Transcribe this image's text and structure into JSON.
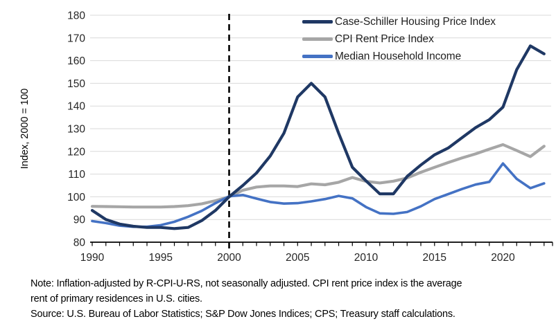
{
  "colors": {
    "gridline": "#d9d9d9",
    "axis": "#000000",
    "reference_line": "#000000",
    "navy": "#1f3864",
    "gray": "#a6a6a6",
    "blue": "#4472c4"
  },
  "chart_data": {
    "type": "line",
    "title": "",
    "ylabel": "Index, 2000 = 100",
    "xlabel": "",
    "ylim": [
      80,
      180
    ],
    "xlim": [
      1990,
      2023
    ],
    "grid": true,
    "legend_position": "top-right",
    "reference_line_x": 2000,
    "y_ticks": [
      80,
      90,
      100,
      110,
      120,
      130,
      140,
      150,
      160,
      170,
      180
    ],
    "x_ticks": [
      1990,
      1995,
      2000,
      2005,
      2010,
      2015,
      2020
    ],
    "x": [
      1990,
      1991,
      1992,
      1993,
      1994,
      1995,
      1996,
      1997,
      1998,
      1999,
      2000,
      2001,
      2002,
      2003,
      2004,
      2005,
      2006,
      2007,
      2008,
      2009,
      2010,
      2011,
      2012,
      2013,
      2014,
      2015,
      2016,
      2017,
      2018,
      2019,
      2020,
      2021,
      2022,
      2023
    ],
    "series": [
      {
        "name": "Case-Schiller Housing Price Index",
        "color": "#1f3864",
        "values": [
          94,
          90,
          88,
          87,
          86.5,
          86.5,
          86,
          86.5,
          89.5,
          94,
          100,
          105,
          110.5,
          118,
          128,
          144,
          150,
          144,
          128,
          113,
          107,
          101.3,
          101.3,
          109,
          114,
          118.5,
          121.5,
          126,
          130.5,
          134,
          139.5,
          156,
          166.5,
          163
        ]
      },
      {
        "name": "CPI Rent Price Index",
        "color": "#a6a6a6",
        "values": [
          95.8,
          95.7,
          95.6,
          95.5,
          95.5,
          95.5,
          95.7,
          96.1,
          96.9,
          98.3,
          100,
          102.9,
          104.3,
          104.8,
          104.8,
          104.5,
          105.7,
          105.3,
          106.4,
          108.5,
          106.8,
          106.1,
          106.9,
          108.3,
          110.8,
          113,
          115.1,
          117.1,
          118.9,
          121,
          123,
          120.4,
          117.7,
          122.3
        ]
      },
      {
        "name": "Median Household Income",
        "color": "#4472c4",
        "values": [
          89.3,
          88.4,
          87.3,
          86.8,
          86.8,
          87.5,
          89,
          91.2,
          93.8,
          97.2,
          100.2,
          100.8,
          99.2,
          97.7,
          97,
          97.2,
          98,
          99,
          100.4,
          99.3,
          95.5,
          92.7,
          92.5,
          93.3,
          95.8,
          99,
          101.2,
          103.4,
          105.4,
          106.6,
          114.7,
          107.9,
          103.8,
          105.9
        ]
      }
    ]
  },
  "axis": {
    "y_title": "Index, 2000 = 100"
  },
  "notes": {
    "note_lines": [
      "Note: Inflation-adjusted by R-CPI-U-RS, not seasonally adjusted. CPI rent price index is the average",
      "rent of primary residences in U.S. cities.",
      "Source: U.S. Bureau of Labor Statistics; S&P Dow Jones Indices; CPS; Treasury staff calculations."
    ]
  }
}
